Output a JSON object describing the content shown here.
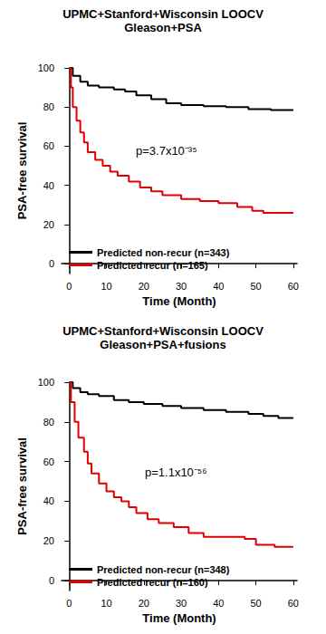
{
  "chart_data": [
    {
      "type": "step",
      "title": "UPMC+Stanford+Wisconsin LOOCV",
      "subtitle": "Gleason+PSA",
      "x_label": "Time (Month)",
      "y_label": "PSA-free survival",
      "annotation": "p=3.7x10⁻³⁵",
      "xlim": [
        -2,
        61
      ],
      "xticks": [
        0,
        10,
        20,
        30,
        40,
        50,
        60
      ],
      "ylim": [
        -5,
        100
      ],
      "yticks": [
        0,
        20,
        40,
        60,
        80,
        100
      ],
      "grid": false,
      "legend": "lower left",
      "series": [
        {
          "name": "Predicted non-recur (n=343)",
          "color": "#000000",
          "x": [
            0,
            1,
            3,
            5,
            8,
            12,
            15,
            18,
            22,
            26,
            30,
            36,
            42,
            48,
            54,
            60
          ],
          "values": [
            100,
            96,
            93,
            91,
            90,
            89,
            88,
            86,
            84,
            82,
            81,
            80.5,
            80,
            79,
            78.5,
            78.5
          ]
        },
        {
          "name": "Predicted recur (n=165)",
          "color": "#e00000",
          "x": [
            0,
            0.5,
            1,
            2,
            3,
            4,
            5,
            7,
            9,
            11,
            13,
            16,
            19,
            22,
            25,
            30,
            35,
            40,
            45,
            49,
            52,
            60
          ],
          "values": [
            100,
            90,
            80,
            73,
            67,
            62,
            57,
            53,
            50,
            47,
            45,
            42,
            39,
            37,
            35,
            33,
            32,
            31,
            29,
            27,
            26,
            26
          ]
        }
      ]
    },
    {
      "type": "step",
      "title": "UPMC+Stanford+Wisconsin LOOCV",
      "subtitle": "Gleason+PSA+fusions",
      "x_label": "Time (Month)",
      "y_label": "PSA-free survival",
      "annotation": "p=1.1x10⁻⁵⁶",
      "xlim": [
        -2,
        61
      ],
      "xticks": [
        0,
        10,
        20,
        30,
        40,
        50,
        60
      ],
      "ylim": [
        -5,
        100
      ],
      "yticks": [
        0,
        20,
        40,
        60,
        80,
        100
      ],
      "grid": false,
      "legend": "lower left",
      "series": [
        {
          "name": "Predicted non-recur (n=348)",
          "color": "#000000",
          "x": [
            0,
            1,
            3,
            5,
            8,
            12,
            16,
            20,
            25,
            30,
            36,
            42,
            48,
            52,
            56,
            60
          ],
          "values": [
            100,
            97,
            95,
            94,
            93,
            91,
            90,
            89,
            88,
            87,
            86,
            85,
            84,
            83,
            82,
            82
          ]
        },
        {
          "name": "Predicted recur (n=160)",
          "color": "#e00000",
          "x": [
            0,
            0.5,
            1.5,
            2.5,
            4,
            5,
            6,
            8,
            10,
            12,
            14,
            16,
            18,
            21,
            24,
            28,
            32,
            36,
            42,
            47,
            50,
            55,
            60
          ],
          "values": [
            100,
            90,
            80,
            72,
            65,
            59,
            54,
            49,
            45,
            42,
            40,
            37,
            34,
            31,
            29,
            27,
            24,
            22,
            22,
            21,
            18,
            17,
            17
          ]
        }
      ]
    }
  ]
}
